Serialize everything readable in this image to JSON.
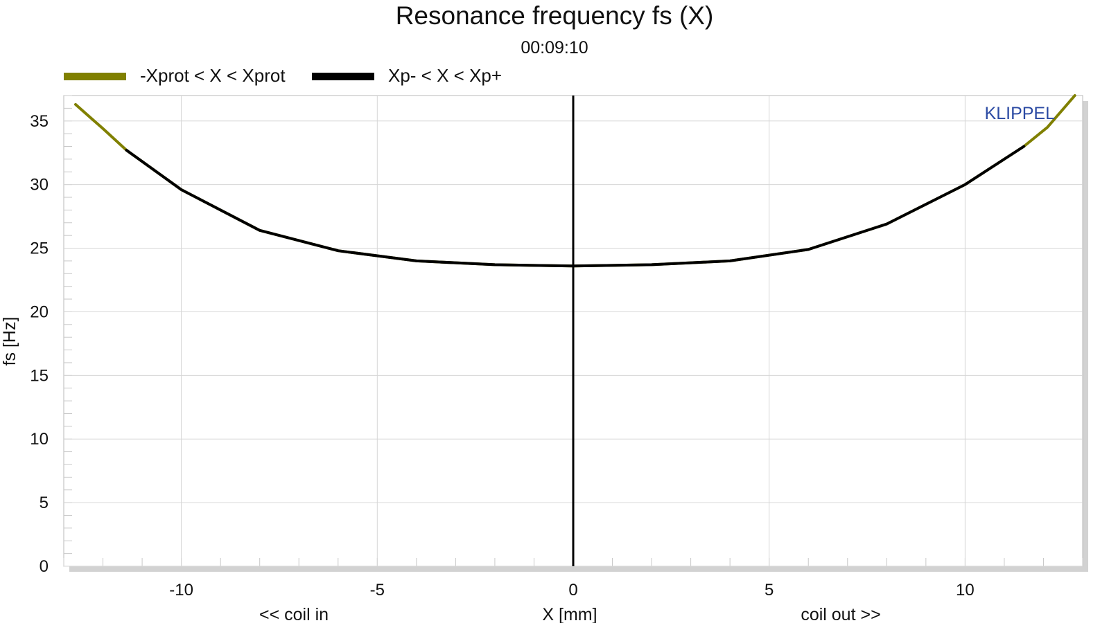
{
  "chart_data": {
    "type": "line",
    "title": "Resonance frequency fs (X)",
    "subtitle": "00:09:10",
    "xlabel": "X [mm]",
    "ylabel": "fs [Hz]",
    "x_annotations": {
      "left": "<< coil in",
      "right": "coil out >>"
    },
    "watermark": "KLIPPEL",
    "xlim": [
      -13.0,
      13.0
    ],
    "ylim": [
      0,
      37
    ],
    "x_ticks": [
      -10,
      -5,
      0,
      5,
      10
    ],
    "y_ticks": [
      0,
      5,
      10,
      15,
      20,
      25,
      30,
      35
    ],
    "grid": true,
    "legend_position": "top-left",
    "zero_line_x": 0,
    "series": [
      {
        "name": "-Xprot < X < Xprot",
        "color": "#808000",
        "x": [
          -12.7,
          -12.0,
          -11.4,
          -10.0,
          -8.0,
          -6.0,
          -4.0,
          -2.0,
          0.0,
          2.0,
          4.0,
          6.0,
          8.0,
          10.0,
          11.5,
          12.1,
          12.8
        ],
        "y": [
          36.3,
          34.4,
          32.7,
          29.6,
          26.4,
          24.8,
          24.0,
          23.7,
          23.6,
          23.7,
          24.0,
          24.9,
          26.9,
          30.0,
          33.0,
          34.5,
          37.0
        ]
      },
      {
        "name": "Xp- < X < Xp+",
        "color": "#000000",
        "x": [
          -11.4,
          -10.0,
          -8.0,
          -6.0,
          -4.0,
          -2.0,
          0.0,
          2.0,
          4.0,
          6.0,
          8.0,
          10.0,
          11.5
        ],
        "y": [
          32.7,
          29.6,
          26.4,
          24.8,
          24.0,
          23.7,
          23.6,
          23.7,
          24.0,
          24.9,
          26.9,
          30.0,
          33.0
        ]
      }
    ]
  }
}
